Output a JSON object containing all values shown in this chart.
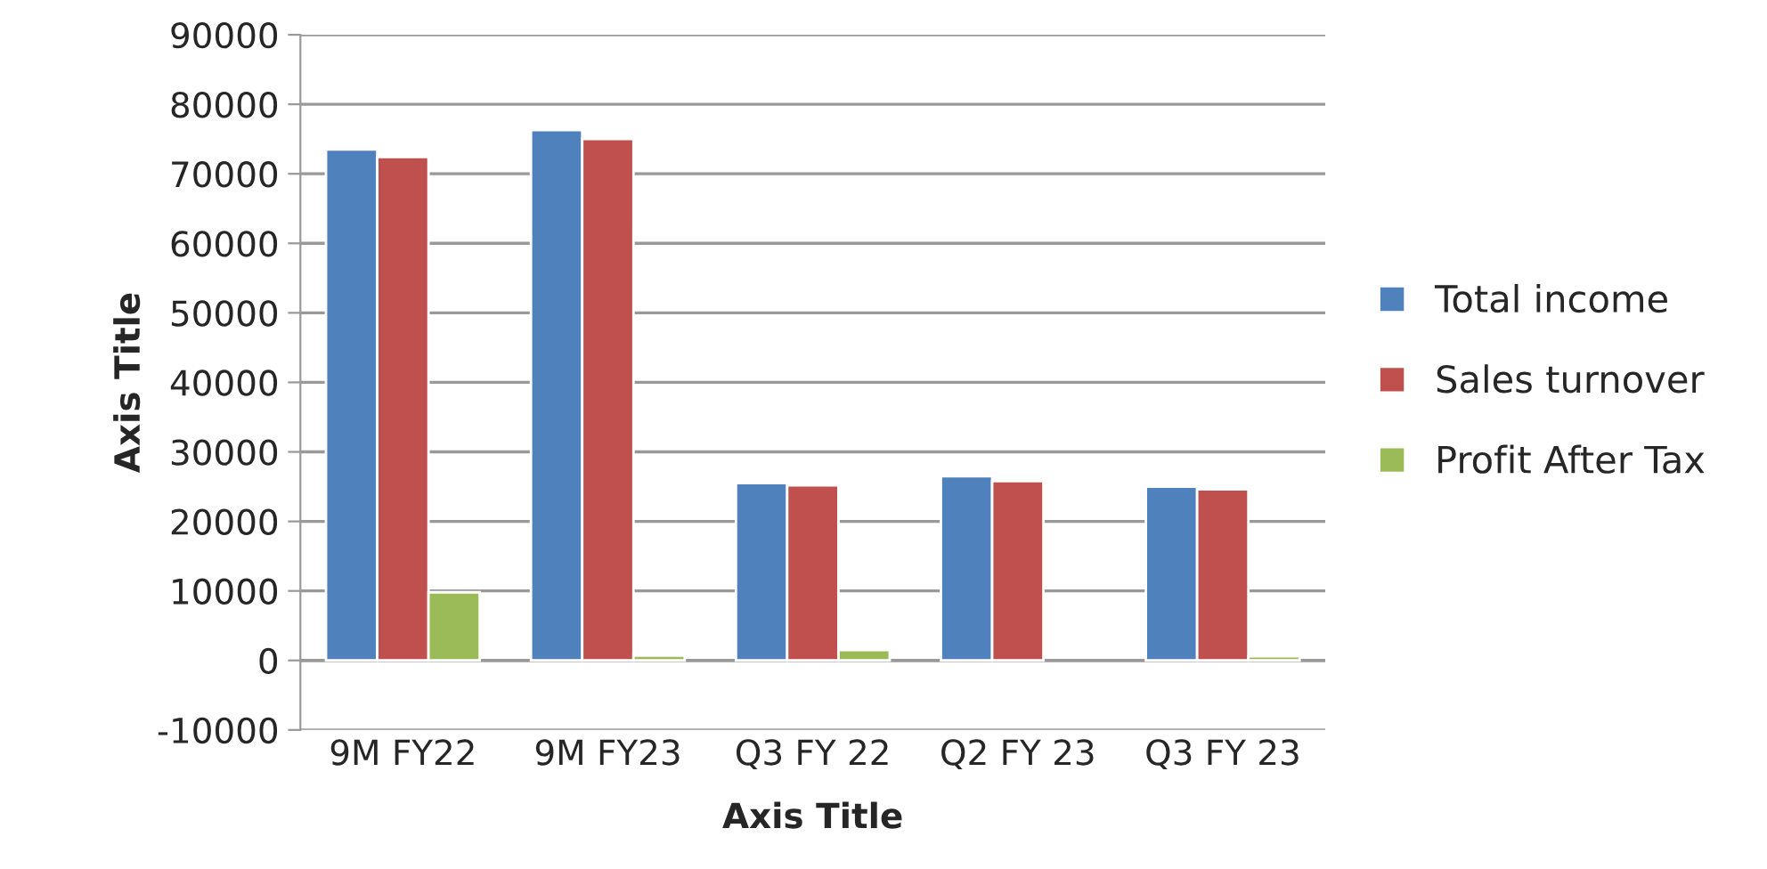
{
  "chart_data": {
    "type": "bar",
    "xlabel": "Axis Title",
    "ylabel": "Axis Title",
    "categories": [
      "9M FY22",
      "9M FY23",
      "Q3 FY 22",
      "Q2 FY 23",
      "Q3 FY 23"
    ],
    "series": [
      {
        "name": "Total income",
        "color": "#4f81bd",
        "values": [
          73500,
          76300,
          25500,
          26500,
          25000
        ]
      },
      {
        "name": "Sales turnover",
        "color": "#c0504d",
        "values": [
          72400,
          75000,
          25200,
          25800,
          24600
        ]
      },
      {
        "name": "Profit After Tax",
        "color": "#9bbb59",
        "values": [
          9800,
          700,
          1500,
          null,
          600
        ]
      }
    ],
    "ylim": [
      -10000,
      90000
    ],
    "yticks": [
      -10000,
      0,
      10000,
      20000,
      30000,
      40000,
      50000,
      60000,
      70000,
      80000,
      90000
    ],
    "grid": "y",
    "legend": "right"
  }
}
